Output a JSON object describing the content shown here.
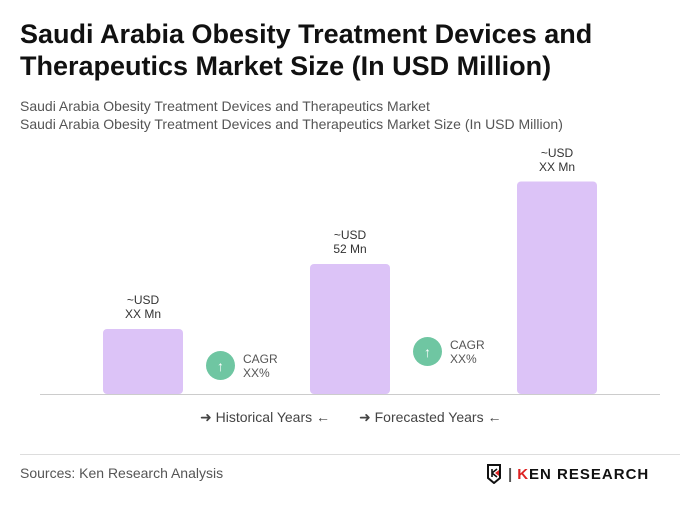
{
  "title": "Saudi Arabia Obesity Treatment Devices and Therapeutics Market Size (In USD Million)",
  "subtitle1": "Saudi Arabia Obesity Treatment Devices and Therapeutics Market",
  "subtitle2": "Saudi Arabia Obesity Treatment Devices and Therapeutics Market Size (In USD Million)",
  "chart_data": {
    "type": "bar",
    "categories": [
      "",
      "",
      ""
    ],
    "values": [
      26,
      52,
      85
    ],
    "data_labels": [
      [
        "~USD",
        "XX Mn"
      ],
      [
        "~USD",
        "52 Mn"
      ],
      [
        "~USD",
        "XX Mn"
      ]
    ],
    "bar_color": "#dcc3f7",
    "cagr": [
      {
        "label": "CAGR",
        "value": "XX%"
      },
      {
        "label": "CAGR",
        "value": "XX%"
      }
    ],
    "cagr_color": "#6fc6a2",
    "legend": [
      "Historical Years",
      "Forecasted Years"
    ],
    "grid": false
  },
  "sources": "Sources: Ken Research Analysis",
  "logo_text": "KEN RESEARCH"
}
